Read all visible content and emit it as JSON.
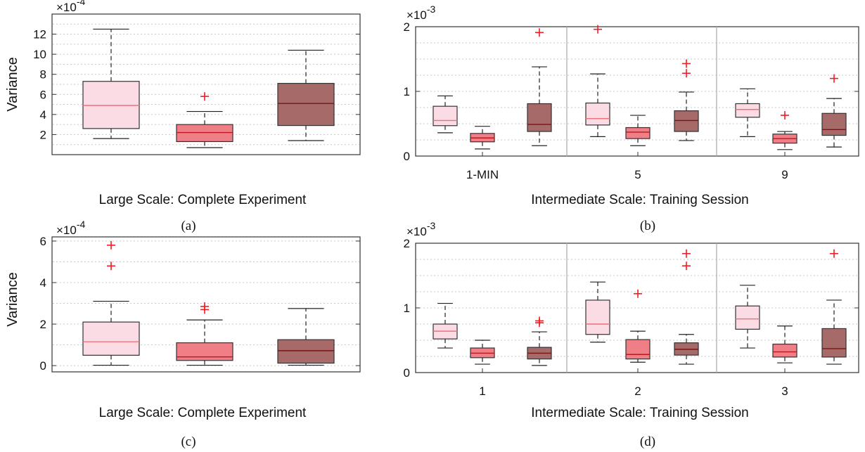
{
  "colors": {
    "light": "#fbdbe4",
    "medium": "#f07e86",
    "dark": "#a66a68",
    "median_light": "#f0707a",
    "median_medium": "#b81820",
    "median_dark": "#7a1418",
    "outlier": "#ee1c24",
    "grid": "#c8c8c8"
  },
  "chart_data": [
    {
      "type": "box",
      "panel": "(a)",
      "xlabel": "Large Scale: Complete Experiment",
      "ylabel": "Variance",
      "exponent_label": "×10",
      "exponent_power": "-4",
      "ylim": [
        0,
        14
      ],
      "yticks": [
        2,
        4,
        6,
        8,
        10,
        12
      ],
      "ytick_labels": [
        "2",
        "4",
        "6",
        "8",
        "10",
        "12"
      ],
      "grid": "dotted horizontal",
      "groups": [],
      "boxes": [
        {
          "color": "light",
          "whisker_low": 1.6,
          "q1": 2.6,
          "median": 4.9,
          "q3": 7.3,
          "whisker_high": 12.5,
          "outliers": []
        },
        {
          "color": "medium",
          "whisker_low": 0.7,
          "q1": 1.3,
          "median": 2.2,
          "q3": 3.0,
          "whisker_high": 4.3,
          "outliers": [
            5.8
          ]
        },
        {
          "color": "dark",
          "whisker_low": 1.4,
          "q1": 2.9,
          "median": 5.1,
          "q3": 7.1,
          "whisker_high": 10.4,
          "outliers": []
        }
      ]
    },
    {
      "type": "box",
      "panel": "(b)",
      "xlabel": "Intermediate Scale: Training Session",
      "ylabel": "",
      "exponent_label": "×10",
      "exponent_power": "-3",
      "ylim": [
        0,
        2
      ],
      "yticks": [
        0,
        1,
        2
      ],
      "ytick_labels": [
        "0",
        "1",
        "2"
      ],
      "grid": "dotted horizontal",
      "groups": [
        "1-MIN",
        "5",
        "9"
      ],
      "boxes": [
        {
          "group": 0,
          "color": "light",
          "whisker_low": 0.36,
          "q1": 0.47,
          "median": 0.55,
          "q3": 0.77,
          "whisker_high": 0.93,
          "outliers": []
        },
        {
          "group": 0,
          "color": "medium",
          "whisker_low": 0.11,
          "q1": 0.22,
          "median": 0.28,
          "q3": 0.35,
          "whisker_high": 0.46,
          "outliers": []
        },
        {
          "group": 0,
          "color": "dark",
          "whisker_low": 0.16,
          "q1": 0.38,
          "median": 0.49,
          "q3": 0.81,
          "whisker_high": 1.38,
          "outliers": [
            1.91
          ]
        },
        {
          "group": 1,
          "color": "light",
          "whisker_low": 0.3,
          "q1": 0.48,
          "median": 0.58,
          "q3": 0.82,
          "whisker_high": 1.27,
          "outliers": [
            1.96
          ]
        },
        {
          "group": 1,
          "color": "medium",
          "whisker_low": 0.16,
          "q1": 0.27,
          "median": 0.37,
          "q3": 0.44,
          "whisker_high": 0.63,
          "outliers": []
        },
        {
          "group": 1,
          "color": "dark",
          "whisker_low": 0.24,
          "q1": 0.38,
          "median": 0.55,
          "q3": 0.7,
          "whisker_high": 0.99,
          "outliers": [
            1.28,
            1.43
          ]
        },
        {
          "group": 2,
          "color": "light",
          "whisker_low": 0.3,
          "q1": 0.6,
          "median": 0.72,
          "q3": 0.81,
          "whisker_high": 1.04,
          "outliers": []
        },
        {
          "group": 2,
          "color": "medium",
          "whisker_low": 0.1,
          "q1": 0.2,
          "median": 0.27,
          "q3": 0.34,
          "whisker_high": 0.38,
          "outliers": [
            0.63
          ]
        },
        {
          "group": 2,
          "color": "dark",
          "whisker_low": 0.14,
          "q1": 0.32,
          "median": 0.41,
          "q3": 0.66,
          "whisker_high": 0.89,
          "outliers": [
            1.2
          ]
        }
      ]
    },
    {
      "type": "box",
      "panel": "(c)",
      "xlabel": "Large Scale: Complete Experiment",
      "ylabel": "Variance",
      "exponent_label": "×10",
      "exponent_power": "-4",
      "ylim": [
        -0.3,
        6.2
      ],
      "yticks": [
        0,
        2,
        4,
        6
      ],
      "ytick_labels": [
        "0",
        "2",
        "4",
        "6"
      ],
      "grid": "dotted horizontal",
      "groups": [],
      "boxes": [
        {
          "color": "light",
          "whisker_low": 0.02,
          "q1": 0.5,
          "median": 1.15,
          "q3": 2.1,
          "whisker_high": 3.1,
          "outliers": [
            4.8,
            5.8
          ]
        },
        {
          "color": "medium",
          "whisker_low": 0.02,
          "q1": 0.25,
          "median": 0.42,
          "q3": 1.1,
          "whisker_high": 2.2,
          "outliers": [
            2.7,
            2.85
          ]
        },
        {
          "color": "dark",
          "whisker_low": 0.02,
          "q1": 0.12,
          "median": 0.72,
          "q3": 1.25,
          "whisker_high": 2.75,
          "outliers": []
        }
      ]
    },
    {
      "type": "box",
      "panel": "(d)",
      "xlabel": "Intermediate Scale: Training Session",
      "ylabel": "",
      "exponent_label": "×10",
      "exponent_power": "-3",
      "ylim": [
        0,
        2
      ],
      "yticks": [
        0,
        1,
        2
      ],
      "ytick_labels": [
        "0",
        "1",
        "2"
      ],
      "grid": "dotted horizontal",
      "groups": [
        "1",
        "2",
        "3"
      ],
      "boxes": [
        {
          "group": 0,
          "color": "light",
          "whisker_low": 0.38,
          "q1": 0.52,
          "median": 0.64,
          "q3": 0.75,
          "whisker_high": 1.07,
          "outliers": []
        },
        {
          "group": 0,
          "color": "medium",
          "whisker_low": 0.13,
          "q1": 0.23,
          "median": 0.3,
          "q3": 0.38,
          "whisker_high": 0.5,
          "outliers": []
        },
        {
          "group": 0,
          "color": "dark",
          "whisker_low": 0.11,
          "q1": 0.21,
          "median": 0.3,
          "q3": 0.39,
          "whisker_high": 0.63,
          "outliers": [
            0.77,
            0.8
          ]
        },
        {
          "group": 1,
          "color": "light",
          "whisker_low": 0.47,
          "q1": 0.59,
          "median": 0.75,
          "q3": 1.12,
          "whisker_high": 1.4,
          "outliers": []
        },
        {
          "group": 1,
          "color": "medium",
          "whisker_low": 0.16,
          "q1": 0.21,
          "median": 0.28,
          "q3": 0.51,
          "whisker_high": 0.64,
          "outliers": [
            1.22
          ]
        },
        {
          "group": 1,
          "color": "dark",
          "whisker_low": 0.13,
          "q1": 0.27,
          "median": 0.36,
          "q3": 0.46,
          "whisker_high": 0.59,
          "outliers": [
            1.65,
            1.84
          ]
        },
        {
          "group": 2,
          "color": "light",
          "whisker_low": 0.38,
          "q1": 0.67,
          "median": 0.83,
          "q3": 1.03,
          "whisker_high": 1.35,
          "outliers": []
        },
        {
          "group": 2,
          "color": "medium",
          "whisker_low": 0.15,
          "q1": 0.24,
          "median": 0.32,
          "q3": 0.44,
          "whisker_high": 0.72,
          "outliers": []
        },
        {
          "group": 2,
          "color": "dark",
          "whisker_low": 0.13,
          "q1": 0.24,
          "median": 0.37,
          "q3": 0.68,
          "whisker_high": 1.12,
          "outliers": [
            1.84
          ]
        }
      ]
    }
  ]
}
